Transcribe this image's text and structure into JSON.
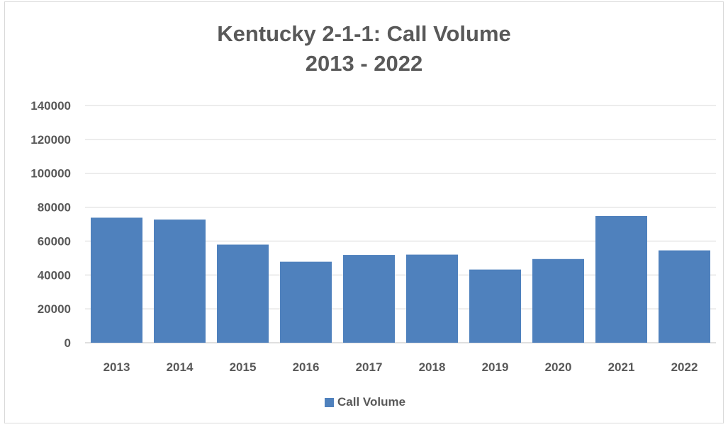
{
  "chart_data": {
    "type": "bar",
    "title_lines": [
      "Kentucky 2-1-1: Call Volume",
      "2013 - 2022"
    ],
    "categories": [
      "2013",
      "2014",
      "2015",
      "2016",
      "2017",
      "2018",
      "2019",
      "2020",
      "2021",
      "2022"
    ],
    "series": [
      {
        "name": "Call Volume",
        "color": "#4f81bd",
        "values": [
          73800,
          72700,
          57900,
          47800,
          51800,
          52000,
          43200,
          49400,
          74800,
          54500
        ]
      }
    ],
    "ylim": [
      0,
      140000
    ],
    "yticks": [
      "0",
      "20000",
      "40000",
      "60000",
      "80000",
      "100000",
      "120000",
      "140000"
    ],
    "xlabel": "",
    "ylabel": "",
    "grid": true,
    "legend_position": "bottom"
  }
}
